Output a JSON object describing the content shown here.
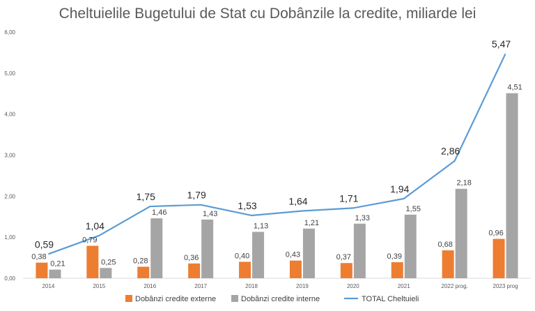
{
  "chart_data": {
    "type": "bar",
    "title": "Cheltuielile Bugetului de Stat cu Dobânzile la credite, miliarde lei",
    "categories": [
      "2014",
      "2015",
      "2016",
      "2017",
      "2018",
      "2019",
      "2020",
      "2021",
      "2022 prog.",
      "2023 prog"
    ],
    "series": [
      {
        "name": "Dobânzi credite externe",
        "kind": "bar",
        "color": "#ED7D31",
        "values": [
          0.38,
          0.79,
          0.28,
          0.36,
          0.4,
          0.43,
          0.37,
          0.39,
          0.68,
          0.96
        ],
        "labels": [
          "0,38",
          "0,79",
          "0,28",
          "0,36",
          "0,40",
          "0,43",
          "0,37",
          "0,39",
          "0,68",
          "0,96"
        ]
      },
      {
        "name": "Dobânzi credite interne",
        "kind": "bar",
        "color": "#A5A5A5",
        "values": [
          0.21,
          0.25,
          1.46,
          1.43,
          1.13,
          1.21,
          1.33,
          1.55,
          2.18,
          4.51
        ],
        "labels": [
          "0,21",
          "0,25",
          "1,46",
          "1,43",
          "1,13",
          "1,21",
          "1,33",
          "1,55",
          "2,18",
          "4,51"
        ]
      },
      {
        "name": "TOTAL Cheltuieli",
        "kind": "line",
        "color": "#5B9BD5",
        "values": [
          0.59,
          1.04,
          1.75,
          1.79,
          1.53,
          1.64,
          1.71,
          1.94,
          2.86,
          5.47
        ],
        "labels": [
          "0,59",
          "1,04",
          "1,75",
          "1,79",
          "1,53",
          "1,64",
          "1,71",
          "1,94",
          "2,86",
          "5,47"
        ]
      }
    ],
    "ylim": [
      0,
      6
    ],
    "yticks": [
      0,
      1,
      2,
      3,
      4,
      5,
      6
    ],
    "ytick_labels": [
      "0,00",
      "1,00",
      "2,00",
      "3,00",
      "4,00",
      "5,00",
      "6,00"
    ],
    "grid": false,
    "legend": "bottom"
  }
}
